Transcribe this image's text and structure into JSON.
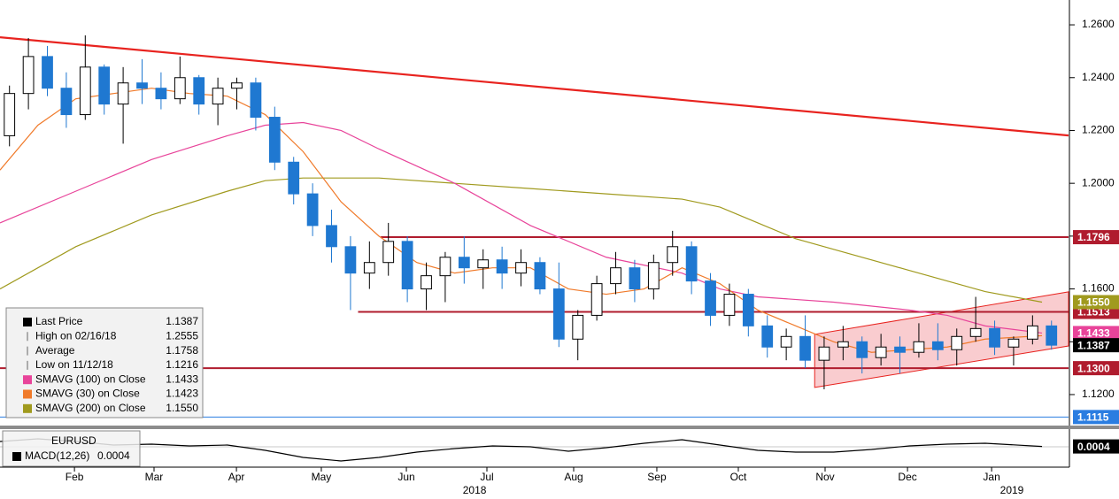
{
  "chart_data": {
    "type": "candlestick",
    "x": [
      0.5,
      1.5,
      2.5,
      3.5,
      4.5,
      5.5,
      6.5,
      7.5,
      8.5,
      9.5,
      10.5,
      11.5,
      12.5,
      13.5,
      14.5,
      15.5,
      16.5,
      17.5,
      18.5,
      19.5,
      20.5,
      21.5,
      22.5,
      23.5,
      24.5,
      25.5,
      26.5,
      27.5,
      28.5,
      29.5,
      30.5,
      31.5,
      32.5,
      33.5,
      34.5,
      35.5,
      36.5,
      37.5,
      38.5,
      39.5,
      40.5,
      41.5,
      42.5,
      43.5,
      44.5,
      45.5,
      46.5,
      47.5,
      48.5,
      49.5,
      50.5,
      51.5,
      52.5,
      53.5,
      54.5,
      55.5
    ],
    "open": [
      1.218,
      1.234,
      1.248,
      1.236,
      1.226,
      1.244,
      1.23,
      1.238,
      1.236,
      1.232,
      1.24,
      1.23,
      1.236,
      1.238,
      1.225,
      1.208,
      1.196,
      1.184,
      1.176,
      1.166,
      1.17,
      1.178,
      1.16,
      1.165,
      1.172,
      1.168,
      1.171,
      1.166,
      1.17,
      1.16,
      1.141,
      1.15,
      1.162,
      1.168,
      1.16,
      1.17,
      1.176,
      1.163,
      1.15,
      1.158,
      1.146,
      1.138,
      1.142,
      1.133,
      1.138,
      1.14,
      1.134,
      1.138,
      1.136,
      1.14,
      1.137,
      1.142,
      1.145,
      1.138,
      1.141,
      1.146
    ],
    "high": [
      1.237,
      1.255,
      1.252,
      1.242,
      1.256,
      1.245,
      1.244,
      1.247,
      1.242,
      1.248,
      1.241,
      1.24,
      1.24,
      1.24,
      1.229,
      1.21,
      1.2,
      1.19,
      1.18,
      1.178,
      1.185,
      1.18,
      1.17,
      1.174,
      1.18,
      1.175,
      1.176,
      1.175,
      1.172,
      1.17,
      1.152,
      1.165,
      1.174,
      1.171,
      1.173,
      1.182,
      1.178,
      1.166,
      1.162,
      1.16,
      1.15,
      1.145,
      1.15,
      1.142,
      1.146,
      1.142,
      1.143,
      1.142,
      1.147,
      1.147,
      1.145,
      1.157,
      1.148,
      1.142,
      1.15,
      1.148
    ],
    "low": [
      1.214,
      1.228,
      1.233,
      1.221,
      1.224,
      1.226,
      1.215,
      1.23,
      1.228,
      1.23,
      1.226,
      1.222,
      1.228,
      1.22,
      1.205,
      1.192,
      1.18,
      1.17,
      1.152,
      1.16,
      1.165,
      1.155,
      1.152,
      1.155,
      1.162,
      1.16,
      1.16,
      1.161,
      1.158,
      1.138,
      1.133,
      1.148,
      1.158,
      1.155,
      1.156,
      1.165,
      1.158,
      1.146,
      1.146,
      1.142,
      1.134,
      1.133,
      1.13,
      1.122,
      1.133,
      1.128,
      1.131,
      1.128,
      1.134,
      1.133,
      1.131,
      1.14,
      1.135,
      1.131,
      1.139,
      1.137
    ],
    "close": [
      1.234,
      1.248,
      1.236,
      1.226,
      1.244,
      1.23,
      1.238,
      1.236,
      1.232,
      1.24,
      1.23,
      1.236,
      1.238,
      1.225,
      1.208,
      1.196,
      1.184,
      1.176,
      1.166,
      1.17,
      1.178,
      1.16,
      1.165,
      1.172,
      1.168,
      1.171,
      1.166,
      1.17,
      1.16,
      1.141,
      1.15,
      1.162,
      1.168,
      1.16,
      1.17,
      1.176,
      1.163,
      1.15,
      1.158,
      1.146,
      1.138,
      1.142,
      1.133,
      1.138,
      1.14,
      1.134,
      1.138,
      1.136,
      1.14,
      1.137,
      1.142,
      1.145,
      1.138,
      1.141,
      1.146,
      1.1387
    ],
    "up_color": "#ffffff",
    "down_color": "#1f78d1",
    "xlim": [
      0,
      56.4
    ],
    "ylim": [
      1.1086,
      1.2694
    ],
    "yticks": [
      {
        "value": 1.26,
        "label": "1.2600"
      },
      {
        "value": 1.24,
        "label": "1.2400"
      },
      {
        "value": 1.22,
        "label": "1.2200"
      },
      {
        "value": 1.2,
        "label": "1.2000"
      },
      {
        "value": 1.18,
        "label": "1.1800"
      },
      {
        "value": 1.16,
        "label": "1.1600"
      },
      {
        "value": 1.14,
        "label": "1.1400"
      },
      {
        "value": 1.12,
        "label": "1.1200"
      }
    ],
    "xticks": [
      {
        "value": 3.93,
        "label": "Feb"
      },
      {
        "value": 8.13,
        "label": "Mar"
      },
      {
        "value": 12.48,
        "label": "Apr"
      },
      {
        "value": 16.96,
        "label": "May"
      },
      {
        "value": 21.45,
        "label": "Jun"
      },
      {
        "value": 25.7,
        "label": "Jul"
      },
      {
        "value": 30.28,
        "label": "Aug"
      },
      {
        "value": 34.67,
        "label": "Sep"
      },
      {
        "value": 38.97,
        "label": "Oct"
      },
      {
        "value": 43.55,
        "label": "Nov"
      },
      {
        "value": 47.9,
        "label": "Dec"
      },
      {
        "value": 52.34,
        "label": "Jan"
      }
    ],
    "year_ticks": [
      {
        "value": 25.05,
        "label": "2018"
      },
      {
        "value": 53.41,
        "label": "2019"
      }
    ],
    "series": [
      {
        "name": "SMAVG (200)",
        "color": "#a09a1e",
        "x": [
          0,
          4,
          8,
          12,
          14,
          16,
          20,
          24,
          28,
          32,
          36,
          38,
          40,
          42,
          44,
          48,
          52,
          55
        ],
        "values": [
          1.16,
          1.176,
          1.188,
          1.197,
          1.201,
          1.202,
          1.202,
          1.2,
          1.198,
          1.196,
          1.194,
          1.191,
          1.185,
          1.179,
          1.175,
          1.167,
          1.159,
          1.155
        ]
      },
      {
        "name": "SMAVG (100)",
        "color": "#e8449a",
        "x": [
          0,
          4,
          8,
          12,
          14,
          16,
          18,
          20,
          24,
          28,
          32,
          36,
          38,
          40,
          44,
          48,
          50,
          52,
          55
        ],
        "values": [
          1.185,
          1.197,
          1.209,
          1.218,
          1.222,
          1.223,
          1.22,
          1.213,
          1.2,
          1.184,
          1.172,
          1.166,
          1.16,
          1.157,
          1.155,
          1.152,
          1.15,
          1.146,
          1.1433
        ]
      },
      {
        "name": "SMAVG (30)",
        "color": "#f07a2a",
        "x": [
          0,
          2,
          4,
          6,
          8,
          10,
          12,
          14,
          16,
          18,
          20,
          22,
          24,
          26,
          28,
          30,
          32,
          34,
          36,
          38,
          40,
          42,
          44,
          46,
          48,
          50,
          52,
          55
        ],
        "values": [
          1.205,
          1.222,
          1.232,
          1.234,
          1.236,
          1.234,
          1.233,
          1.226,
          1.212,
          1.193,
          1.18,
          1.17,
          1.166,
          1.168,
          1.168,
          1.16,
          1.158,
          1.16,
          1.168,
          1.162,
          1.152,
          1.146,
          1.14,
          1.136,
          1.137,
          1.138,
          1.141,
          1.1423
        ]
      }
    ],
    "trend_lines": [
      {
        "color": "#e8231f",
        "x": [
          0,
          56.4
        ],
        "values": [
          1.2553,
          1.2181
        ]
      }
    ],
    "channel": {
      "color": "#f4a3a8",
      "x": [
        43.0,
        56.4
      ],
      "lower": [
        1.1227,
        1.1384
      ],
      "upper": [
        1.1428,
        1.1589
      ]
    },
    "levels": [
      {
        "value": 1.1796,
        "label": "1.1796",
        "color": "#b01c2e",
        "x_start": 20.1
      },
      {
        "value": 1.1513,
        "label": "1.1513",
        "color": "#b01c2e",
        "x_start": 18.9
      },
      {
        "value": 1.13,
        "label": "1.1300",
        "color": "#b01c2e",
        "x_start": 0
      },
      {
        "value": 1.1115,
        "label": "1.1115",
        "color": "#2a7de1",
        "x_start": 0
      }
    ],
    "price_labels": [
      {
        "value": 1.155,
        "label": "1.1550",
        "color": "#a09a1e"
      },
      {
        "value": 1.1433,
        "label": "1.1433",
        "color": "#e8449a"
      },
      {
        "value": 1.1387,
        "label": "1.1387",
        "color": "#000000"
      }
    ],
    "legend_rows": [
      {
        "name": "Last Price",
        "value": 1.1387,
        "color": "#000000"
      },
      {
        "name": "High on 02/16/18",
        "value": 1.2555
      },
      {
        "name": "Average",
        "value": 1.1758
      },
      {
        "name": "Low on 11/12/18",
        "value": 1.1216
      },
      {
        "name": "SMAVG (100)  on Close",
        "value": 1.1433,
        "color": "#e8449a"
      },
      {
        "name": "SMAVG (30)  on Close",
        "value": 1.1423,
        "color": "#f07a2a"
      },
      {
        "name": "SMAVG (200)  on Close",
        "value": 1.155,
        "value_label": "1.1550",
        "color": "#a09a1e"
      }
    ],
    "macd": {
      "title": "EURUSD",
      "name": "MACD(12,26)",
      "last": 0.0004,
      "color": "#000000",
      "ylim": [
        -0.019,
        0.017
      ],
      "x": [
        0,
        2,
        4,
        6,
        8,
        10,
        12,
        14,
        16,
        18,
        20,
        22,
        24,
        26,
        28,
        30,
        32,
        34,
        36,
        38,
        40,
        42,
        44,
        46,
        48,
        50,
        52,
        55
      ],
      "values": [
        0.006,
        0.009,
        0.006,
        0.002,
        0.003,
        0.001,
        0.002,
        -0.004,
        -0.012,
        -0.016,
        -0.012,
        -0.006,
        -0.002,
        0.001,
        0,
        -0.005,
        -0.001,
        0.004,
        0.008,
        0.002,
        -0.004,
        -0.006,
        -0.006,
        -0.003,
        0.001,
        0.003,
        0.004,
        0.0004
      ]
    }
  }
}
